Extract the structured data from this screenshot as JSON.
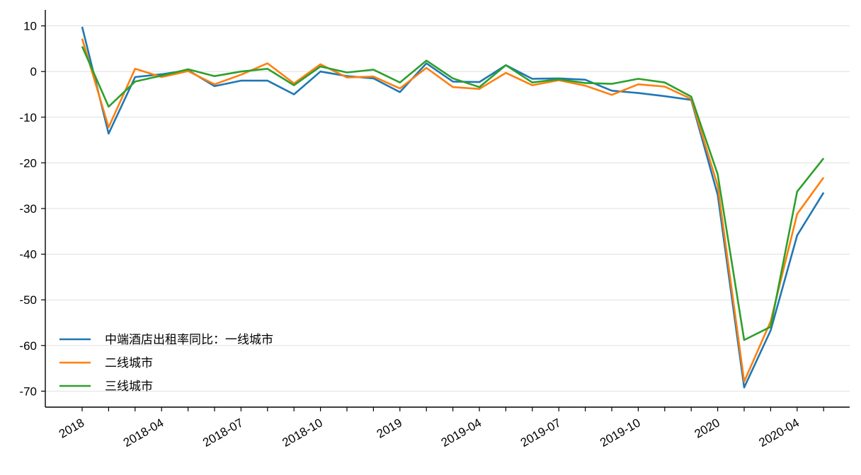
{
  "chart_data": {
    "type": "line",
    "title": "",
    "xlabel": "",
    "ylabel": "",
    "ylim": [
      -73.5,
      13.5
    ],
    "yticks": [
      10,
      0,
      -10,
      -20,
      -30,
      -40,
      -50,
      -60,
      -70
    ],
    "grid": "horizontal",
    "legend_position": "lower-left",
    "x": [
      "2018-01",
      "2018-02",
      "2018-03",
      "2018-04",
      "2018-05",
      "2018-06",
      "2018-07",
      "2018-08",
      "2018-09",
      "2018-10",
      "2018-11",
      "2018-12",
      "2019-01",
      "2019-02",
      "2019-03",
      "2019-04",
      "2019-05",
      "2019-06",
      "2019-07",
      "2019-08",
      "2019-09",
      "2019-10",
      "2019-11",
      "2019-12",
      "2020-01",
      "2020-02",
      "2020-03",
      "2020-04",
      "2020-05"
    ],
    "x_tick_labels": [
      {
        "label": "2018",
        "x": "2018-01"
      },
      {
        "label": "2018-04",
        "x": "2018-04"
      },
      {
        "label": "2018-07",
        "x": "2018-07"
      },
      {
        "label": "2018-10",
        "x": "2018-10"
      },
      {
        "label": "2019",
        "x": "2019-01"
      },
      {
        "label": "2019-04",
        "x": "2019-04"
      },
      {
        "label": "2019-07",
        "x": "2019-07"
      },
      {
        "label": "2019-10",
        "x": "2019-10"
      },
      {
        "label": "2020",
        "x": "2020-01"
      },
      {
        "label": "2020-04",
        "x": "2020-04"
      }
    ],
    "series": [
      {
        "name": "中端酒店出租率同比：一线城市",
        "color": "#1f77b4",
        "values": [
          9.8,
          -13.6,
          -1.2,
          -0.6,
          0.3,
          -3.2,
          -2.0,
          -2.0,
          -5.0,
          0.0,
          -1.0,
          -1.5,
          -4.5,
          1.8,
          -2.2,
          -2.3,
          1.4,
          -1.6,
          -1.5,
          -1.8,
          -4.2,
          -4.7,
          -5.4,
          -6.2,
          -27.0,
          -69.2,
          -56.7,
          -35.9,
          -26.5
        ]
      },
      {
        "name": "二线城市",
        "color": "#ff7f0e",
        "values": [
          7.2,
          -12.2,
          0.6,
          -1.2,
          0.1,
          -2.8,
          -0.7,
          1.8,
          -2.6,
          1.6,
          -1.3,
          -1.1,
          -3.7,
          0.8,
          -3.4,
          -3.8,
          -0.3,
          -3.0,
          -1.9,
          -3.1,
          -5.1,
          -2.8,
          -3.3,
          -6.0,
          -25.0,
          -67.9,
          -54.7,
          -31.2,
          -23.2
        ]
      },
      {
        "name": "三线城市",
        "color": "#2ca02c",
        "values": [
          5.5,
          -7.7,
          -2.2,
          -0.9,
          0.5,
          -1.0,
          0.0,
          0.6,
          -3.0,
          1.1,
          -0.2,
          0.4,
          -2.4,
          2.4,
          -1.5,
          -3.4,
          1.4,
          -2.4,
          -1.7,
          -2.5,
          -2.7,
          -1.6,
          -2.4,
          -5.5,
          -22.5,
          -58.8,
          -55.9,
          -26.3,
          -19.0
        ]
      }
    ]
  }
}
